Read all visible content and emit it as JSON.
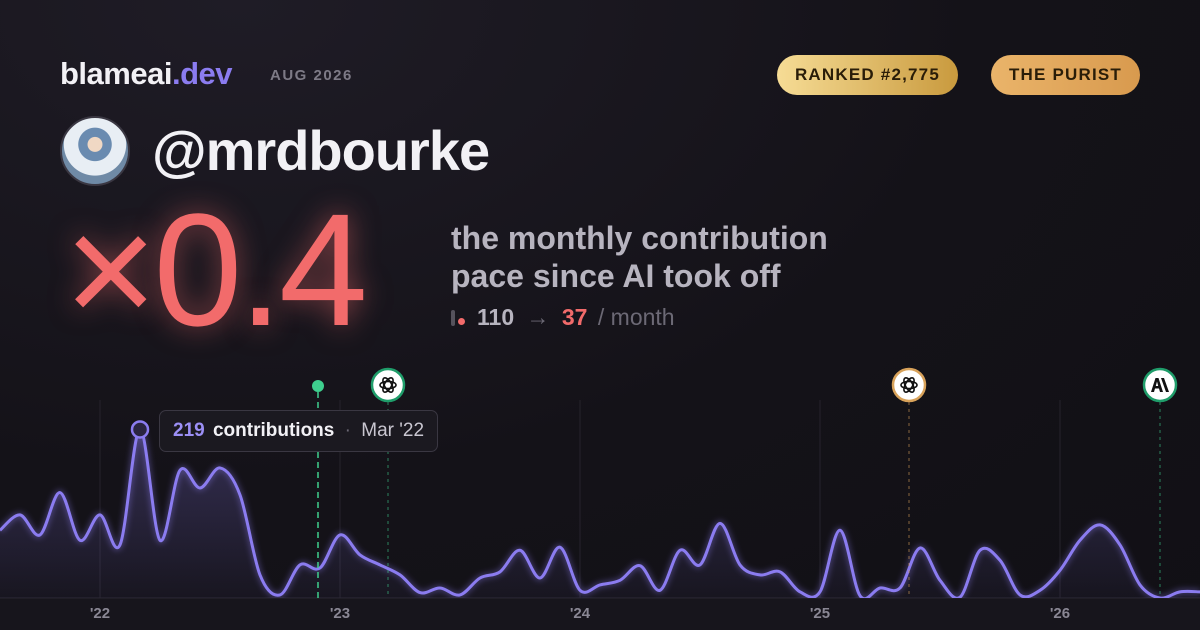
{
  "header": {
    "brand": "blameai",
    "brand_tld": ".dev",
    "period": "AUG 2026",
    "badges": [
      "RANKED #2,775",
      "THE PURIST"
    ],
    "handle": "@mrdbourke"
  },
  "headline": {
    "multiplier": "×0.4",
    "caption": [
      "the monthly contribution",
      "pace since AI took off"
    ],
    "before": 110,
    "arrow": "→",
    "after": 37,
    "unit": "/ month"
  },
  "chart_data": {
    "type": "area",
    "color": "#8b7cf0",
    "x": [
      "2021-08",
      "2021-09",
      "2021-10",
      "2021-11",
      "2021-12",
      "2022-01",
      "2022-02",
      "2022-03",
      "2022-04",
      "2022-05",
      "2022-06",
      "2022-07",
      "2022-08",
      "2022-09",
      "2022-10",
      "2022-11",
      "2022-12",
      "2023-01",
      "2023-02",
      "2023-03",
      "2023-04",
      "2023-05",
      "2023-06",
      "2023-07",
      "2023-08",
      "2023-09",
      "2023-10",
      "2023-11",
      "2023-12",
      "2024-01",
      "2024-02",
      "2024-03",
      "2024-04",
      "2024-05",
      "2024-06",
      "2024-07",
      "2024-08",
      "2024-09",
      "2024-10",
      "2024-11",
      "2024-12",
      "2025-01",
      "2025-02",
      "2025-03",
      "2025-04",
      "2025-05",
      "2025-06",
      "2025-07",
      "2025-08",
      "2025-09",
      "2025-10",
      "2025-11",
      "2025-12",
      "2026-01",
      "2026-02",
      "2026-03",
      "2026-04",
      "2026-05",
      "2026-06",
      "2026-07",
      "2026-08"
    ],
    "values": [
      88,
      108,
      82,
      137,
      75,
      108,
      69,
      219,
      75,
      166,
      143,
      169,
      134,
      30,
      4,
      43,
      39,
      82,
      56,
      43,
      30,
      7,
      13,
      4,
      26,
      34,
      62,
      26,
      66,
      10,
      17,
      23,
      42,
      10,
      62,
      43,
      97,
      43,
      30,
      34,
      8,
      8,
      88,
      3,
      13,
      13,
      65,
      23,
      1,
      62,
      49,
      4,
      10,
      36,
      75,
      95,
      69,
      17,
      0,
      8,
      8
    ],
    "xlim": [
      "2021-08",
      "2026-08"
    ],
    "ylim": [
      0,
      230
    ],
    "xticks": [
      {
        "value": "2022-01",
        "label": "'22"
      },
      {
        "value": "2023-01",
        "label": "'23"
      },
      {
        "value": "2024-01",
        "label": "'24"
      },
      {
        "value": "2025-01",
        "label": "'25"
      },
      {
        "value": "2026-01",
        "label": "'26"
      }
    ],
    "grid": true,
    "tooltip": {
      "unit": "contributions",
      "separator": "·",
      "date": "Mar '22"
    }
  }
}
